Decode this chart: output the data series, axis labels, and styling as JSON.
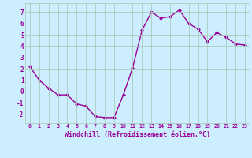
{
  "x": [
    0,
    1,
    2,
    3,
    4,
    5,
    6,
    7,
    8,
    9,
    10,
    11,
    12,
    13,
    14,
    15,
    16,
    17,
    18,
    19,
    20,
    21,
    22,
    23
  ],
  "y": [
    2.2,
    1.0,
    0.3,
    -0.3,
    -0.3,
    -1.1,
    -1.3,
    -2.2,
    -2.3,
    -2.3,
    -0.3,
    2.1,
    5.4,
    7.0,
    6.5,
    6.6,
    7.2,
    6.0,
    5.5,
    4.4,
    5.2,
    4.8,
    4.2,
    4.1
  ],
  "line_color": "#990099",
  "marker": "D",
  "markersize": 2.0,
  "linewidth": 1.0,
  "background_color": "#cceeff",
  "grid_color": "#aaccbb",
  "xlabel": "Windchill (Refroidissement éolien,°C)",
  "xlabel_fontsize": 6.0,
  "ylabel_ticks": [
    -2,
    -1,
    0,
    1,
    2,
    3,
    4,
    5,
    6,
    7
  ],
  "xlim": [
    -0.5,
    23.5
  ],
  "ylim": [
    -2.8,
    7.8
  ],
  "xtick_fontsize": 4.8,
  "ytick_fontsize": 5.5
}
